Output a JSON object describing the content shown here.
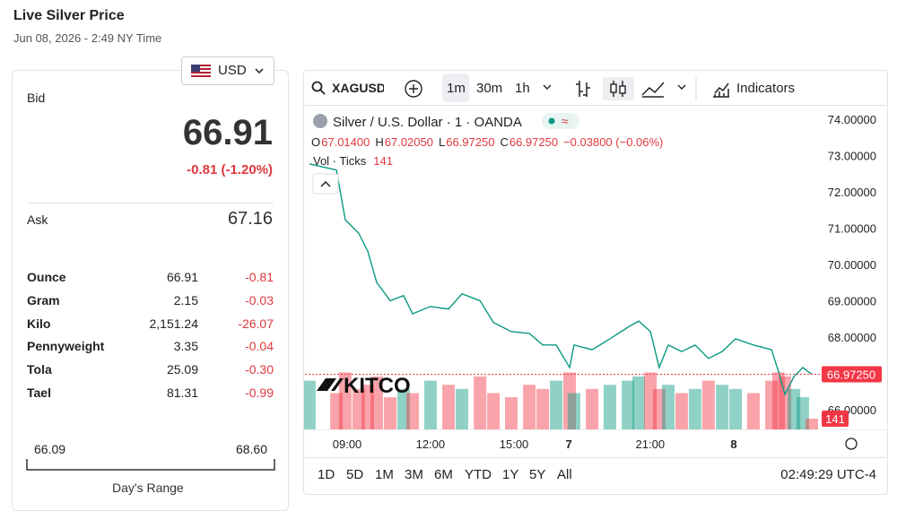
{
  "header": {
    "title": "Live Silver Price",
    "datetime": "Jun 08, 2026 - 2:49 NY Time"
  },
  "currency": "USD",
  "quote": {
    "bid_label": "Bid",
    "bid": "66.91",
    "change": "-0.81 (-1.20%)",
    "ask_label": "Ask",
    "ask": "67.16"
  },
  "table": {
    "rows": [
      [
        "Ounce",
        "66.91",
        "-0.81"
      ],
      [
        "Gram",
        "2.15",
        "-0.03"
      ],
      [
        "Kilo",
        "2,151.24",
        "-26.07"
      ],
      [
        "Pennyweight",
        "3.35",
        "-0.04"
      ],
      [
        "Tola",
        "25.09",
        "-0.30"
      ],
      [
        "Tael",
        "81.31",
        "-0.99"
      ]
    ]
  },
  "range": {
    "low": "66.09",
    "high": "68.60",
    "label": "Day's Range"
  },
  "toolbar": {
    "symbol": "XAGUSD",
    "intervals": [
      "1m",
      "30m",
      "1h"
    ],
    "indicators": "Indicators"
  },
  "legend": {
    "ohlc": [
      [
        "O",
        "67.01400"
      ],
      [
        "H",
        "67.02050"
      ],
      [
        "L",
        "66.97250"
      ],
      [
        "C",
        "66.97250"
      ]
    ],
    "change": "−0.03800 (−0.06%)"
  },
  "periods": [
    "1D",
    "5D",
    "1M",
    "3M",
    "6M",
    "YTD",
    "1Y",
    "5Y",
    "All"
  ],
  "clock": "02:49:29 UTC-4",
  "chart_data": {
    "type": "line",
    "x": [
      0.16,
      1.15,
      1.47,
      1.96,
      2.29,
      2.62,
      3.11,
      3.6,
      3.93,
      4.58,
      5.24,
      5.73,
      6.39,
      6.88,
      7.53,
      8.19,
      8.68,
      9.17,
      9.66,
      9.82,
      10.48,
      11.13,
      11.79,
      12.18,
      12.61,
      12.93,
      13.26,
      13.75,
      14.24,
      14.73,
      15.23,
      15.72,
      16.37,
      17.03,
      17.29,
      17.52,
      17.85,
      18.17,
      18.5
    ],
    "series": [
      {
        "name": "Silver / U.S. Dollar · 1 · OANDA",
        "color": "#089981",
        "values": [
          72.77,
          72.6,
          71.23,
          70.86,
          70.37,
          69.5,
          69.0,
          69.14,
          68.64,
          68.84,
          68.77,
          69.19,
          69.0,
          68.4,
          68.15,
          68.1,
          67.78,
          67.78,
          67.16,
          67.78,
          67.65,
          67.95,
          68.27,
          68.44,
          68.15,
          67.16,
          67.78,
          67.6,
          67.78,
          67.41,
          67.6,
          67.95,
          67.78,
          67.65,
          67.04,
          66.42,
          66.91,
          67.16,
          66.9725
        ]
      },
      {
        "name": "Vol · Ticks",
        "axis": "y2",
        "color": "#f23645",
        "values": [
          600,
          450,
          700,
          500,
          550,
          650,
          400,
          500,
          450,
          600,
          550,
          500,
          650,
          450,
          400,
          550,
          500,
          600,
          700,
          450,
          500,
          550,
          600,
          650,
          700,
          500,
          550,
          450,
          500,
          600,
          550,
          500,
          450,
          600,
          700,
          650,
          500,
          400,
          141
        ]
      }
    ],
    "up_color": "#089981",
    "down_color": "#f23645",
    "xlim": [
      0,
      18.5
    ],
    "ylim": [
      65.43,
      74.32
    ],
    "y2lim": [
      0,
      3900
    ],
    "xticks": [
      {
        "value": 1.54,
        "label": "09:00"
      },
      {
        "value": 4.58,
        "label": "12:00"
      },
      {
        "value": 7.63,
        "label": "15:00"
      },
      {
        "value": 9.63,
        "label": "7"
      },
      {
        "value": 12.6,
        "label": "21:00"
      },
      {
        "value": 15.65,
        "label": "8"
      }
    ],
    "yticks": [
      {
        "value": 74,
        "label": "74.00000"
      },
      {
        "value": 73,
        "label": "73.00000"
      },
      {
        "value": 72,
        "label": "72.00000"
      },
      {
        "value": 71,
        "label": "71.00000"
      },
      {
        "value": 70,
        "label": "70.00000"
      },
      {
        "value": 69,
        "label": "69.00000"
      },
      {
        "value": 68,
        "label": "68.00000"
      },
      {
        "value": 66,
        "label": "66.00000"
      }
    ],
    "price_marker": {
      "value": 66.9725,
      "label": "66.97250"
    },
    "watermark": "KITCO"
  }
}
